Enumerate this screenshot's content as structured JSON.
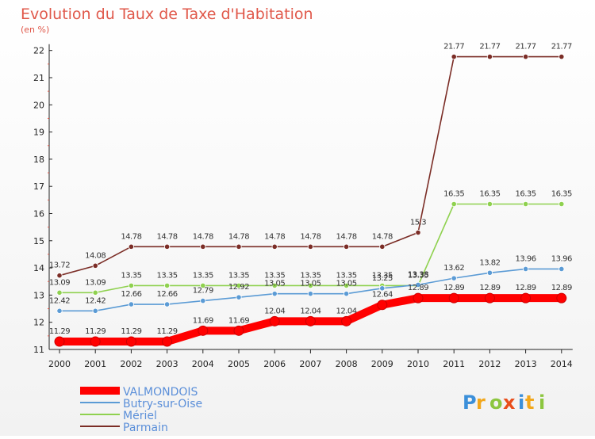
{
  "chart_data": {
    "type": "line",
    "title": "Evolution du Taux de Taxe d'Habitation",
    "subtitle": "(en %)",
    "xlabel": "",
    "ylabel": "",
    "categories": [
      "2000",
      "2001",
      "2002",
      "2003",
      "2004",
      "2005",
      "2006",
      "2007",
      "2008",
      "2009",
      "2010",
      "2011",
      "2012",
      "2013",
      "2014"
    ],
    "ylim": [
      11,
      22
    ],
    "yticks": [
      11,
      12,
      13,
      14,
      15,
      16,
      17,
      18,
      19,
      20,
      21,
      22
    ],
    "grid": false,
    "legend_position": "bottom-left",
    "series": [
      {
        "name": "VALMONDOIS",
        "color": "#ff0000",
        "values": [
          11.29,
          11.29,
          11.29,
          11.29,
          11.69,
          11.69,
          12.04,
          12.04,
          12.04,
          12.64,
          12.89,
          12.89,
          12.89,
          12.89,
          12.89
        ],
        "labels": [
          "11.29",
          "11.29",
          "11.29",
          "11.29",
          "11.69",
          "11.69",
          "12.04",
          "12.04",
          "12.04",
          "12.64",
          "12.89",
          "12.89",
          "12.89",
          "12.89",
          "12.89"
        ]
      },
      {
        "name": "Butry-sur-Oise",
        "color": "#5b9bd5",
        "values": [
          12.42,
          12.42,
          12.66,
          12.66,
          12.79,
          12.92,
          13.05,
          13.05,
          13.05,
          13.25,
          13.38,
          13.62,
          13.82,
          13.96,
          13.96
        ],
        "labels": [
          "12.42",
          "12.42",
          "12.66",
          "12.66",
          "12.79",
          "12.92",
          "13.05",
          "13.05",
          "13.05",
          "13.25",
          "13.38",
          "13.62",
          "13.82",
          "13.96",
          "13.96"
        ]
      },
      {
        "name": "Mériel",
        "color": "#8fd14f",
        "values": [
          13.09,
          13.09,
          13.35,
          13.35,
          13.35,
          13.35,
          13.35,
          13.35,
          13.35,
          13.35,
          13.35,
          16.35,
          16.35,
          16.35,
          16.35
        ],
        "labels": [
          "13.09",
          "13.09",
          "13.35",
          "13.35",
          "13.35",
          "13.35",
          "13.35",
          "13.35",
          "13.35",
          "13.35",
          "13.35",
          "16.35",
          "16.35",
          "16.35",
          "16.35"
        ]
      },
      {
        "name": "Parmain",
        "color": "#7b2d26",
        "values": [
          13.72,
          14.08,
          14.78,
          14.78,
          14.78,
          14.78,
          14.78,
          14.78,
          14.78,
          14.78,
          15.3,
          21.77,
          21.77,
          21.77,
          21.77
        ],
        "labels": [
          "13.72",
          "14.08",
          "14.78",
          "14.78",
          "14.78",
          "14.78",
          "14.78",
          "14.78",
          "14.78",
          "14.78",
          "15.3",
          "21.77",
          "21.77",
          "21.77",
          "21.77"
        ]
      }
    ]
  },
  "brand": {
    "logo_text": "Proxiti",
    "logo_colors": [
      "#3b8fd9",
      "#f2a71b",
      "#8cc63f",
      "#e94e1b",
      "#3b8fd9",
      "#f2a71b",
      "#8cc63f"
    ]
  }
}
